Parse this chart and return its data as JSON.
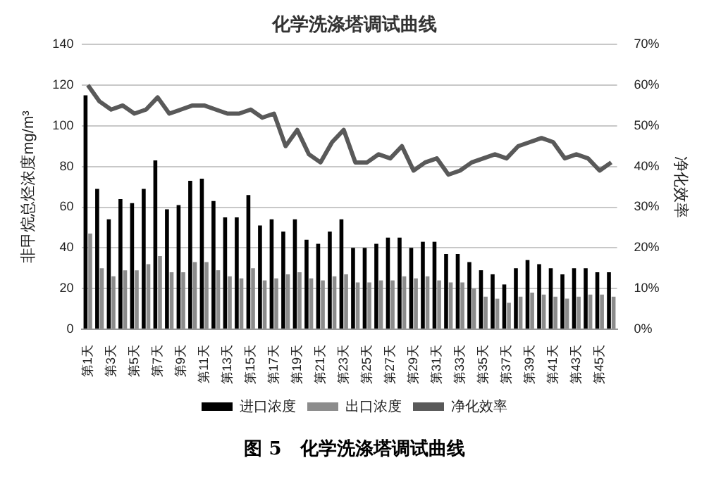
{
  "chart_data": {
    "type": "bar",
    "title": "化学洗涤塔调试曲线",
    "ylabel": "非甲烷总烃浓度mg/m³",
    "y2label": "净化效率",
    "categories": [
      "第1天",
      null,
      "第3天",
      null,
      "第5天",
      null,
      "第7天",
      null,
      "第9天",
      null,
      "第11天",
      null,
      "第13天",
      null,
      "第15天",
      null,
      "第17天",
      null,
      "第19天",
      null,
      "第21天",
      null,
      "第23天",
      null,
      "第25天",
      null,
      "第27天",
      null,
      "第29天",
      null,
      "第31天",
      null,
      "第33天",
      null,
      "第35天",
      null,
      "第37天",
      null,
      "第39天",
      null,
      "第41天",
      null,
      "第43天",
      null,
      "第45天",
      null
    ],
    "series": [
      {
        "name": "进口浓度",
        "color": "#000000",
        "values": [
          115,
          69,
          54,
          64,
          62,
          69,
          83,
          59,
          61,
          73,
          74,
          63,
          55,
          55,
          66,
          51,
          54,
          48,
          54,
          44,
          42,
          48,
          54,
          40,
          40,
          42,
          45,
          45,
          40,
          43,
          43,
          37,
          37,
          33,
          29,
          27,
          22,
          30,
          34,
          32,
          30,
          27,
          30,
          30,
          28,
          28
        ]
      },
      {
        "name": "出口浓度",
        "color": "#8c8c8c",
        "values": [
          47,
          30,
          26,
          29,
          29,
          32,
          36,
          28,
          28,
          33,
          33,
          29,
          26,
          25,
          30,
          24,
          25,
          27,
          28,
          25,
          24,
          26,
          27,
          23,
          23,
          24,
          24,
          26,
          25,
          26,
          24,
          23,
          23,
          20,
          16,
          15,
          13,
          16,
          18,
          17,
          16,
          15,
          16,
          17,
          17,
          16
        ]
      },
      {
        "name": "净化效率",
        "type": "line",
        "axis": "y2",
        "color": "#595959",
        "values": [
          60,
          56,
          54,
          55,
          53,
          54,
          57,
          53,
          54,
          55,
          55,
          54,
          53,
          53,
          54,
          52,
          53,
          45,
          49,
          43,
          41,
          46,
          49,
          41,
          41,
          43,
          42,
          45,
          39,
          41,
          42,
          38,
          39,
          41,
          42,
          43,
          42,
          45,
          46,
          47,
          46,
          42,
          43,
          42,
          39,
          41
        ]
      }
    ],
    "ylim": [
      0,
      140
    ],
    "yticks": [
      0,
      20,
      40,
      60,
      80,
      100,
      120,
      140
    ],
    "y2lim": [
      0,
      70
    ],
    "y2ticks": [
      {
        "value": 0,
        "label": "0%"
      },
      {
        "value": 10,
        "label": "10%"
      },
      {
        "value": 20,
        "label": "20%"
      },
      {
        "value": 30,
        "label": "30%"
      },
      {
        "value": 40,
        "label": "40%"
      },
      {
        "value": 50,
        "label": "50%"
      },
      {
        "value": 60,
        "label": "60%"
      },
      {
        "value": 70,
        "label": "70%"
      }
    ],
    "grid": "y",
    "legend": "bottom",
    "marker": "none",
    "line_style": "solid",
    "annotations": [
      "图 5　化学洗涤塔调试曲线"
    ]
  }
}
